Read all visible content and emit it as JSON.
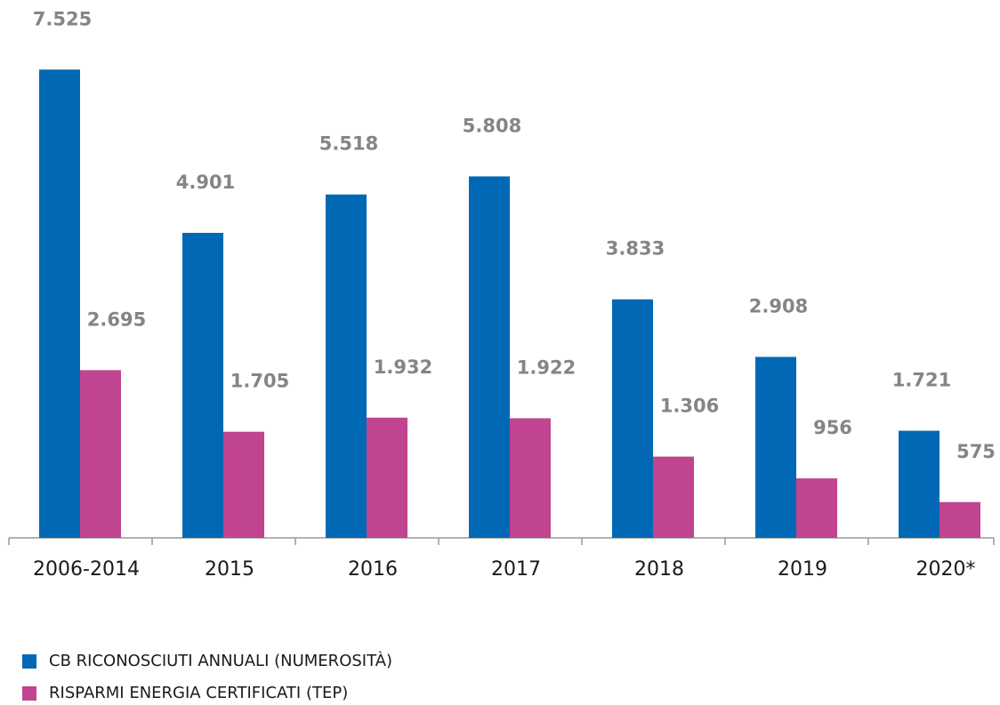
{
  "chart_data": {
    "type": "bar",
    "categories": [
      "2006-2014",
      "2015",
      "2016",
      "2017",
      "2018",
      "2019",
      "2020*"
    ],
    "series": [
      {
        "name": "CB RICONOSCIUTI ANNUALI (NUMEROSITÀ)",
        "color": "#0068b4",
        "values": [
          7525,
          4901,
          5518,
          5808,
          3833,
          2908,
          1721
        ],
        "value_labels": [
          "7.525",
          "4.901",
          "5.518",
          "5.808",
          "3.833",
          "2.908",
          "1.721"
        ]
      },
      {
        "name": "RISPARMI ENERGIA CERTIFICATI (TEP)",
        "color": "#c0448f",
        "values": [
          2695,
          1705,
          1932,
          1922,
          1306,
          956,
          575
        ],
        "value_labels": [
          "2.695",
          "1.705",
          "1.932",
          "1.922",
          "1.306",
          "956",
          "575"
        ]
      }
    ],
    "ylim": [
      0,
      8500
    ],
    "legend": "bottom-left"
  }
}
